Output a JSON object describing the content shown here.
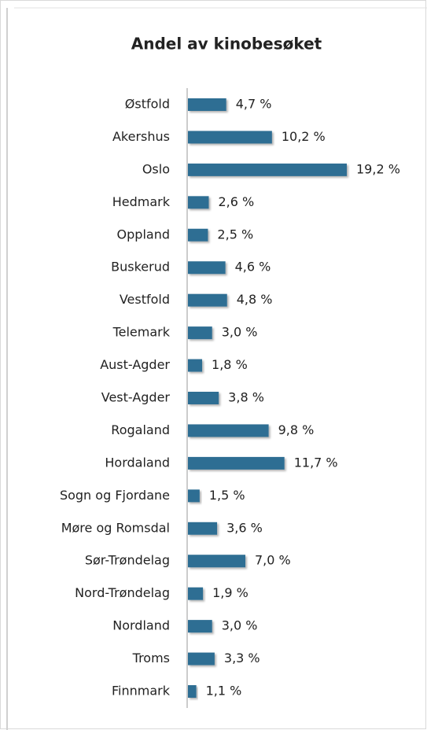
{
  "chart_data": {
    "type": "barh",
    "title": "Andel av kinobesøket",
    "categories": [
      "Østfold",
      "Akershus",
      "Oslo",
      "Hedmark",
      "Oppland",
      "Buskerud",
      "Vestfold",
      "Telemark",
      "Aust-Agder",
      "Vest-Agder",
      "Rogaland",
      "Hordaland",
      "Sogn og Fjordane",
      "Møre og Romsdal",
      "Sør-Trøndelag",
      "Nord-Trøndelag",
      "Nordland",
      "Troms",
      "Finnmark"
    ],
    "values": [
      4.7,
      10.2,
      19.2,
      2.6,
      2.5,
      4.6,
      4.8,
      3.0,
      1.8,
      3.8,
      9.8,
      11.7,
      1.5,
      3.6,
      7.0,
      1.9,
      3.0,
      3.3,
      1.1
    ],
    "value_labels": [
      "4,7 %",
      "10,2 %",
      "19,2 %",
      "2,6 %",
      "2,5 %",
      "4,6 %",
      "4,8 %",
      "3,0 %",
      "1,8 %",
      "3,8 %",
      "9,8 %",
      "11,7 %",
      "1,5 %",
      "3,6 %",
      "7,0 %",
      "1,9 %",
      "3,0 %",
      "3,3 %",
      "1,1 %"
    ],
    "color": "#2f6e93"
  }
}
